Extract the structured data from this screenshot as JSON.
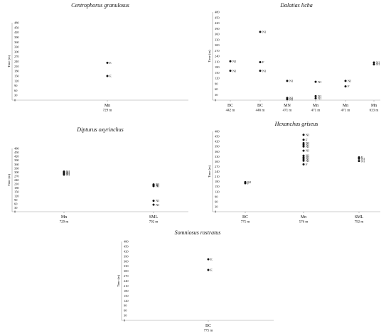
{
  "chart_data": [
    {
      "type": "scatter",
      "title": "Centrophorus granulosus",
      "ylabel": "Time (m)",
      "ylim": [
        0,
        480
      ],
      "yticks": [
        0,
        30,
        60,
        90,
        120,
        150,
        180,
        210,
        240,
        270,
        300,
        330,
        360,
        390,
        420,
        450,
        480
      ],
      "categories": [
        {
          "label": "Mn",
          "sub": "729 m"
        }
      ],
      "points": [
        {
          "cat": 0,
          "y": 232,
          "label": "E"
        },
        {
          "cat": 0,
          "y": 150,
          "label": "E"
        }
      ]
    },
    {
      "type": "scatter",
      "title": "Dalatias licha",
      "ylabel": "Time (m)",
      "ylim": [
        0,
        480
      ],
      "yticks": [
        0,
        30,
        60,
        90,
        120,
        150,
        180,
        210,
        240,
        270,
        300,
        330,
        360,
        390,
        420,
        450,
        480
      ],
      "categories": [
        {
          "label": "BC",
          "sub": "442 m"
        },
        {
          "label": "BC",
          "sub": "446 m"
        },
        {
          "label": "MN",
          "sub": "471 m"
        },
        {
          "label": "Mn",
          "sub": "471 m"
        },
        {
          "label": "Mn",
          "sub": "471 m"
        },
        {
          "label": "Mn",
          "sub": "633 m"
        }
      ],
      "points": [
        {
          "cat": 0,
          "y": 212,
          "label": "NI"
        },
        {
          "cat": 0,
          "y": 160,
          "label": "NI"
        },
        {
          "cat": 1,
          "y": 372,
          "label": "NI"
        },
        {
          "cat": 1,
          "y": 207,
          "label": "F"
        },
        {
          "cat": 1,
          "y": 160,
          "label": "NI"
        },
        {
          "cat": 2,
          "y": 105,
          "label": "NI"
        },
        {
          "cat": 2,
          "y": 12,
          "label": "NI"
        },
        {
          "cat": 2,
          "y": 5,
          "label": "NI"
        },
        {
          "cat": 3,
          "y": 100,
          "label": "NI"
        },
        {
          "cat": 3,
          "y": 22,
          "label": "NI"
        },
        {
          "cat": 3,
          "y": 10,
          "label": "NI"
        },
        {
          "cat": 4,
          "y": 105,
          "label": "NI"
        },
        {
          "cat": 4,
          "y": 75,
          "label": "F"
        },
        {
          "cat": 5,
          "y": 205,
          "label": "NI"
        },
        {
          "cat": 5,
          "y": 195,
          "label": "NI"
        }
      ]
    },
    {
      "type": "scatter",
      "title": "Dipturus oxyrinchus",
      "ylabel": "Time (m)",
      "ylim": [
        0,
        480
      ],
      "yticks": [
        0,
        30,
        60,
        90,
        120,
        150,
        180,
        210,
        240,
        270,
        300,
        330,
        360,
        390,
        420,
        450,
        480
      ],
      "categories": [
        {
          "label": "Mn",
          "sub": "729 m"
        },
        {
          "label": "SML",
          "sub": "792 m"
        }
      ],
      "points": [
        {
          "cat": 0,
          "y": 305,
          "label": "NI"
        },
        {
          "cat": 0,
          "y": 297,
          "label": "NI"
        },
        {
          "cat": 0,
          "y": 289,
          "label": "NI"
        },
        {
          "cat": 0,
          "y": 281,
          "label": "NI"
        },
        {
          "cat": 1,
          "y": 207,
          "label": "NI"
        },
        {
          "cat": 1,
          "y": 200,
          "label": "NI"
        },
        {
          "cat": 1,
          "y": 194,
          "label": "NI"
        },
        {
          "cat": 1,
          "y": 83,
          "label": "NI"
        },
        {
          "cat": 1,
          "y": 53,
          "label": "NI"
        }
      ]
    },
    {
      "type": "scatter",
      "title": "Hexanchus griseus",
      "ylabel": "Time (m)",
      "ylim": [
        0,
        480
      ],
      "yticks": [
        0,
        30,
        60,
        90,
        120,
        150,
        180,
        210,
        240,
        270,
        300,
        330,
        360,
        390,
        420,
        450,
        480
      ],
      "categories": [
        {
          "label": "BC",
          "sub": "775 m"
        },
        {
          "label": "Mn",
          "sub": "576 m"
        },
        {
          "label": "SML",
          "sub": "792 m"
        }
      ],
      "points": [
        {
          "cat": 0,
          "y": 177,
          "label": "NI"
        },
        {
          "cat": 0,
          "y": 170,
          "label": "F"
        },
        {
          "cat": 1,
          "y": 460,
          "label": "NI"
        },
        {
          "cat": 1,
          "y": 430,
          "label": "F"
        },
        {
          "cat": 1,
          "y": 410,
          "label": "NI"
        },
        {
          "cat": 1,
          "y": 400,
          "label": "NI"
        },
        {
          "cat": 1,
          "y": 390,
          "label": "NI"
        },
        {
          "cat": 1,
          "y": 365,
          "label": "NI"
        },
        {
          "cat": 1,
          "y": 335,
          "label": "NI"
        },
        {
          "cat": 1,
          "y": 325,
          "label": "NI"
        },
        {
          "cat": 1,
          "y": 315,
          "label": "NI"
        },
        {
          "cat": 1,
          "y": 305,
          "label": "NI"
        },
        {
          "cat": 1,
          "y": 283,
          "label": "F"
        },
        {
          "cat": 2,
          "y": 325,
          "label": "F"
        },
        {
          "cat": 2,
          "y": 317,
          "label": "NI"
        },
        {
          "cat": 2,
          "y": 303,
          "label": "NI"
        }
      ]
    },
    {
      "type": "scatter",
      "title": "Somniosus rostratus",
      "ylabel": "Time (m)",
      "ylim": [
        0,
        480
      ],
      "yticks": [
        0,
        30,
        60,
        90,
        120,
        150,
        180,
        210,
        240,
        270,
        300,
        330,
        360,
        390,
        420,
        450,
        480
      ],
      "categories": [
        {
          "label": "BC",
          "sub": "775 m"
        }
      ],
      "points": [
        {
          "cat": 0,
          "y": 372,
          "label": "E"
        },
        {
          "cat": 0,
          "y": 307,
          "label": "E"
        }
      ]
    }
  ]
}
